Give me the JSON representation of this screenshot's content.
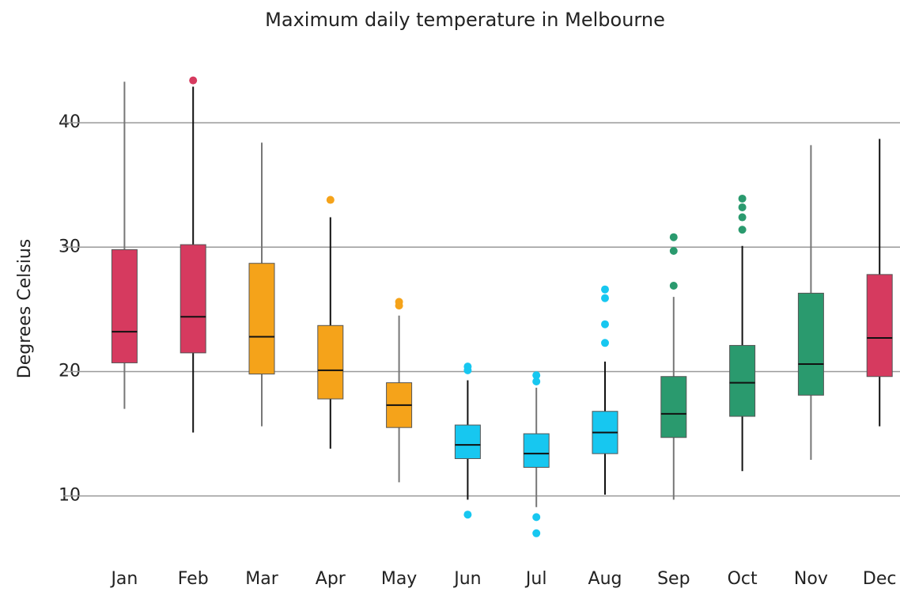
{
  "chart_data": {
    "type": "box",
    "title": "Maximum daily temperature in Melbourne",
    "y_label": "Degrees Celsius",
    "categories": [
      "Jan",
      "Feb",
      "Mar",
      "Apr",
      "May",
      "Jun",
      "Jul",
      "Aug",
      "Sep",
      "Oct",
      "Nov",
      "Dec"
    ],
    "colors": [
      "#d63a5f",
      "#d63a5f",
      "#f5a31a",
      "#f5a31a",
      "#f5a31a",
      "#17c7f0",
      "#17c7f0",
      "#17c7f0",
      "#2a9a6e",
      "#2a9a6e",
      "#2a9a6e",
      "#d63a5f"
    ],
    "low": [
      17.0,
      15.1,
      15.6,
      13.8,
      11.1,
      9.7,
      9.1,
      10.1,
      9.7,
      12.0,
      12.9,
      15.6
    ],
    "q1": [
      20.7,
      21.5,
      19.8,
      17.8,
      15.5,
      13.0,
      12.3,
      13.4,
      14.7,
      16.4,
      18.1,
      19.6
    ],
    "median": [
      23.2,
      24.4,
      22.8,
      20.1,
      17.3,
      14.1,
      13.4,
      15.1,
      16.6,
      19.1,
      20.6,
      22.7
    ],
    "q3": [
      29.8,
      30.2,
      28.7,
      23.7,
      19.1,
      15.7,
      15.0,
      16.8,
      19.6,
      22.1,
      26.3,
      27.8
    ],
    "high": [
      43.3,
      42.9,
      38.4,
      32.4,
      24.5,
      19.3,
      18.7,
      20.8,
      26.0,
      30.1,
      38.2,
      38.7
    ],
    "outliers": [
      [],
      [
        43.4
      ],
      [],
      [
        33.8
      ],
      [
        25.6,
        25.3
      ],
      [
        20.4,
        20.1,
        8.5
      ],
      [
        19.7,
        19.2,
        8.3,
        7.0
      ],
      [
        26.6,
        25.9,
        23.8,
        22.3
      ],
      [
        30.8,
        29.7,
        26.9
      ],
      [
        33.9,
        33.2,
        32.4,
        31.4
      ],
      [],
      []
    ],
    "ylim": [
      6,
      45
    ],
    "yticks": [
      10,
      20,
      30,
      40
    ],
    "grid": true
  }
}
